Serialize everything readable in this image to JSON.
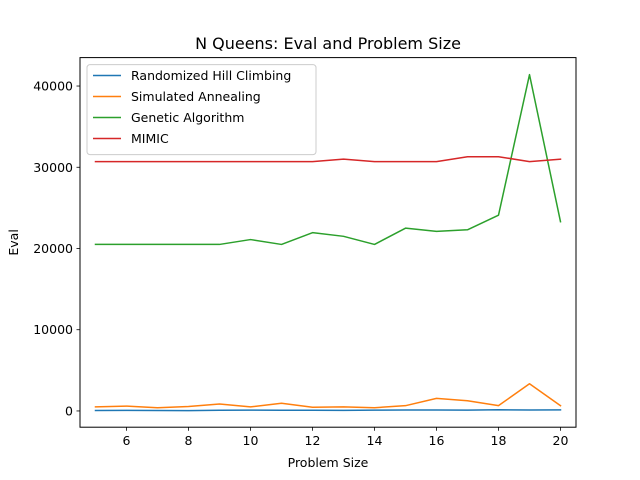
{
  "chart_data": {
    "type": "line",
    "title": "N Queens: Eval and Problem Size",
    "xlabel": "Problem Size",
    "ylabel": "Eval",
    "xlim": [
      4.5,
      20.5
    ],
    "ylim": [
      -2000,
      43500
    ],
    "xticks": [
      6,
      8,
      10,
      12,
      14,
      16,
      18,
      20
    ],
    "yticks": [
      0,
      10000,
      20000,
      30000,
      40000
    ],
    "grid": false,
    "legend_position": "top-left",
    "x": [
      5,
      6,
      7,
      8,
      9,
      10,
      11,
      12,
      13,
      14,
      15,
      16,
      17,
      18,
      19,
      20
    ],
    "series": [
      {
        "name": "Randomized Hill Climbing",
        "color": "#1f77b4",
        "values": [
          50,
          70,
          60,
          40,
          80,
          100,
          80,
          90,
          70,
          100,
          120,
          110,
          100,
          150,
          110,
          130
        ]
      },
      {
        "name": "Simulated Annealing",
        "color": "#ff7f0e",
        "values": [
          500,
          600,
          400,
          550,
          850,
          500,
          950,
          450,
          500,
          400,
          650,
          1550,
          1250,
          650,
          3350,
          650
        ]
      },
      {
        "name": "Genetic Algorithm",
        "color": "#2ca02c",
        "values": [
          20500,
          20500,
          20500,
          20500,
          20500,
          21100,
          20500,
          21950,
          21500,
          20500,
          22500,
          22100,
          22300,
          24100,
          41400,
          23300
        ]
      },
      {
        "name": "MIMIC",
        "color": "#d62728",
        "values": [
          30700,
          30700,
          30700,
          30700,
          30700,
          30700,
          30700,
          30700,
          31000,
          30700,
          30700,
          30700,
          31300,
          31300,
          30700,
          31000
        ]
      }
    ]
  }
}
